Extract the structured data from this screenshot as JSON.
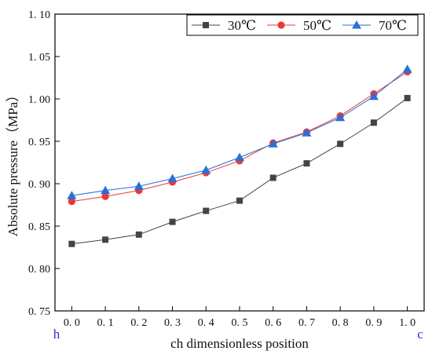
{
  "chart_data": {
    "type": "line",
    "title": "",
    "xlabel": "ch dimensionless position",
    "ylabel": "Absolute pressure（MPa）",
    "x": [
      0.0,
      0.1,
      0.2,
      0.3,
      0.4,
      0.5,
      0.6,
      0.7,
      0.8,
      0.9,
      1.0
    ],
    "x_tick_labels": [
      "0. 0",
      "0. 1",
      "0. 2",
      "0. 3",
      "0. 4",
      "0. 5",
      "0. 6",
      "0. 7",
      "0. 8",
      "0. 9",
      "1. 0"
    ],
    "y_ticks": [
      0.75,
      0.8,
      0.85,
      0.9,
      0.95,
      1.0,
      1.05,
      1.1
    ],
    "y_tick_labels": [
      "0. 75",
      "0. 80",
      "0. 85",
      "0. 90",
      "0. 95",
      "1. 00",
      "1. 05",
      "1. 10"
    ],
    "xlim": [
      -0.05,
      1.05
    ],
    "ylim": [
      0.75,
      1.1
    ],
    "end_labels": {
      "left": "h",
      "right": "c",
      "color": "#3333cc"
    },
    "grid": false,
    "legend_position": "top-right",
    "series": [
      {
        "name": "30℃",
        "marker": "square",
        "color": "#444444",
        "values": [
          0.829,
          0.834,
          0.84,
          0.855,
          0.868,
          0.88,
          0.907,
          0.924,
          0.947,
          0.972,
          1.001
        ]
      },
      {
        "name": "50℃",
        "marker": "circle",
        "color": "#e8393a",
        "values": [
          0.879,
          0.885,
          0.892,
          0.902,
          0.913,
          0.927,
          0.948,
          0.961,
          0.98,
          1.006,
          1.032
        ]
      },
      {
        "name": "70℃",
        "marker": "triangle",
        "color": "#2a6fd6",
        "values": [
          0.886,
          0.892,
          0.897,
          0.906,
          0.916,
          0.931,
          0.947,
          0.96,
          0.978,
          1.003,
          1.035
        ]
      }
    ]
  }
}
